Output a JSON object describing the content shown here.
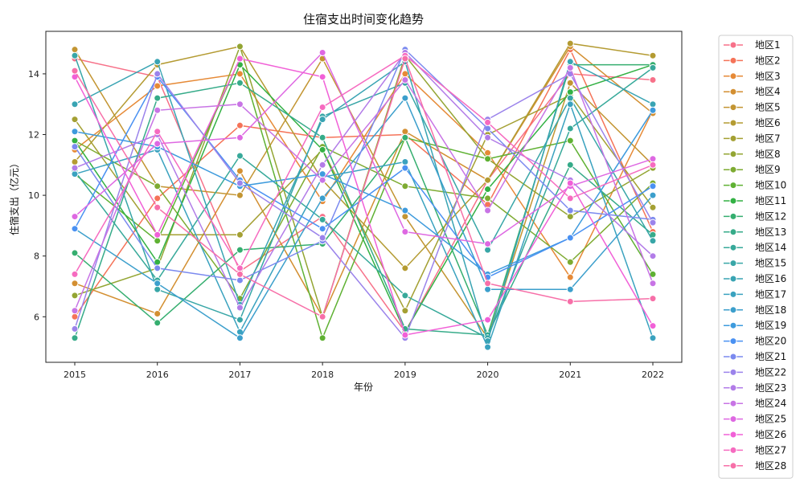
{
  "chart_data": {
    "type": "line",
    "title": "住宿支出时间变化趋势",
    "xlabel": "年份",
    "ylabel": "住宿支出（亿元）",
    "x": [
      "2015",
      "2016",
      "2017",
      "2018",
      "2019",
      "2020",
      "2021",
      "2022"
    ],
    "yticks": [
      "6",
      "8",
      "10",
      "12",
      "14"
    ],
    "ylim": [
      4.5,
      15.4
    ],
    "grid": false,
    "legend": "outside-right",
    "series": [
      {
        "name": "地区1",
        "color": "#f77189",
        "values": [
          14.5,
          13.9,
          7.5,
          9.3,
          5.5,
          10.5,
          14.0,
          13.8
        ]
      },
      {
        "name": "地区2",
        "color": "#f57358",
        "values": [
          6.0,
          9.9,
          12.3,
          11.9,
          12.0,
          9.7,
          14.8,
          8.8
        ]
      },
      {
        "name": "地区3",
        "color": "#e68a37",
        "values": [
          11.5,
          13.6,
          14.0,
          9.8,
          14.0,
          11.4,
          7.3,
          12.8
        ]
      },
      {
        "name": "地区4",
        "color": "#d38f31",
        "values": [
          7.1,
          6.1,
          10.8,
          6.0,
          12.1,
          10.5,
          14.9,
          12.7
        ]
      },
      {
        "name": "地区5",
        "color": "#c39532",
        "values": [
          14.8,
          10.3,
          10.0,
          14.5,
          9.3,
          5.3,
          13.7,
          11.0
        ]
      },
      {
        "name": "地区6",
        "color": "#b49b32",
        "values": [
          11.1,
          14.3,
          14.9,
          10.5,
          7.6,
          10.5,
          15.0,
          14.6
        ]
      },
      {
        "name": "地区7",
        "color": "#a4a033",
        "values": [
          12.5,
          8.7,
          8.7,
          11.5,
          6.2,
          12.0,
          13.3,
          9.6
        ]
      },
      {
        "name": "地区8",
        "color": "#93a533",
        "values": [
          6.7,
          7.6,
          14.9,
          6.0,
          14.6,
          11.2,
          9.3,
          10.9
        ]
      },
      {
        "name": "地区9",
        "color": "#7eab32",
        "values": [
          11.8,
          10.3,
          6.6,
          11.6,
          10.3,
          9.9,
          7.8,
          10.4
        ]
      },
      {
        "name": "地区10",
        "color": "#5fb133",
        "values": [
          10.7,
          8.5,
          14.5,
          5.3,
          11.9,
          11.2,
          11.8,
          7.4
        ]
      },
      {
        "name": "地区11",
        "color": "#33b144",
        "values": [
          11.8,
          7.8,
          14.3,
          11.5,
          5.5,
          10.2,
          13.4,
          14.3
        ]
      },
      {
        "name": "地区12",
        "color": "#35ae6f",
        "values": [
          8.1,
          5.8,
          8.2,
          8.4,
          11.9,
          5.4,
          14.3,
          14.3
        ]
      },
      {
        "name": "地区13",
        "color": "#36ab89",
        "values": [
          5.3,
          13.2,
          13.7,
          11.9,
          5.6,
          5.4,
          11.0,
          8.7
        ]
      },
      {
        "name": "地区14",
        "color": "#37a99a",
        "values": [
          10.8,
          7.2,
          11.3,
          9.2,
          6.7,
          5.3,
          12.2,
          14.2
        ]
      },
      {
        "name": "地区15",
        "color": "#38a6a7",
        "values": [
          14.6,
          6.9,
          5.9,
          12.6,
          13.7,
          8.2,
          13.2,
          8.5
        ]
      },
      {
        "name": "地区16",
        "color": "#39a4b3",
        "values": [
          13.0,
          14.4,
          6.4,
          12.5,
          14.4,
          5.2,
          14.4,
          13.0
        ]
      },
      {
        "name": "地区17",
        "color": "#3aa2bf",
        "values": [
          10.7,
          11.5,
          5.5,
          10.6,
          11.1,
          5.0,
          13.0,
          5.3
        ]
      },
      {
        "name": "地区18",
        "color": "#3c9fcc",
        "values": [
          8.9,
          7.1,
          5.3,
          9.9,
          13.2,
          6.9,
          6.9,
          10.0
        ]
      },
      {
        "name": "地区19",
        "color": "#3e9bdd",
        "values": [
          12.1,
          11.6,
          10.3,
          10.7,
          9.5,
          7.4,
          8.6,
          12.8
        ]
      },
      {
        "name": "地区20",
        "color": "#4a91f2",
        "values": [
          8.9,
          13.9,
          10.5,
          8.9,
          10.9,
          7.3,
          8.6,
          10.3
        ]
      },
      {
        "name": "地区21",
        "color": "#7b8aef",
        "values": [
          11.6,
          7.6,
          7.2,
          8.5,
          14.8,
          12.2,
          9.5,
          9.2
        ]
      },
      {
        "name": "地区22",
        "color": "#9b83eb",
        "values": [
          5.6,
          14.0,
          10.4,
          8.6,
          5.3,
          12.5,
          14.0,
          9.1
        ]
      },
      {
        "name": "地区23",
        "color": "#b27ce8",
        "values": [
          10.9,
          12.0,
          6.3,
          11.0,
          14.7,
          11.9,
          10.5,
          8.0
        ]
      },
      {
        "name": "地区24",
        "color": "#c874e5",
        "values": [
          6.2,
          12.8,
          13.0,
          10.5,
          13.8,
          9.5,
          14.2,
          7.1
        ]
      },
      {
        "name": "地区25",
        "color": "#de68e2",
        "values": [
          9.3,
          11.7,
          11.9,
          14.7,
          8.8,
          8.4,
          10.3,
          11.2
        ]
      },
      {
        "name": "地区26",
        "color": "#f160d7",
        "values": [
          13.9,
          8.7,
          14.5,
          13.9,
          5.4,
          5.9,
          10.4,
          5.7
        ]
      },
      {
        "name": "地区27",
        "color": "#f66bc0",
        "values": [
          7.4,
          12.1,
          7.6,
          12.9,
          14.6,
          12.4,
          9.9,
          11.0
        ]
      },
      {
        "name": "地区28",
        "color": "#f76fa8",
        "values": [
          14.1,
          9.6,
          7.4,
          6.0,
          14.5,
          7.1,
          6.5,
          6.6
        ]
      }
    ]
  }
}
